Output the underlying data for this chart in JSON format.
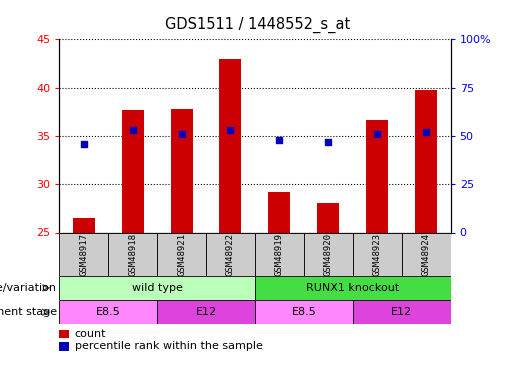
{
  "title": "GDS1511 / 1448552_s_at",
  "samples": [
    "GSM48917",
    "GSM48918",
    "GSM48921",
    "GSM48922",
    "GSM48919",
    "GSM48920",
    "GSM48923",
    "GSM48924"
  ],
  "counts": [
    26.5,
    37.7,
    37.8,
    43.0,
    29.2,
    28.1,
    36.7,
    39.8
  ],
  "percentiles_pct": [
    46,
    53,
    51,
    53,
    48,
    47,
    51,
    52
  ],
  "ylim_left": [
    25,
    45
  ],
  "ylim_right": [
    0,
    100
  ],
  "yticks_left": [
    25,
    30,
    35,
    40,
    45
  ],
  "yticks_right": [
    0,
    25,
    50,
    75,
    100
  ],
  "ytick_labels_right": [
    "0",
    "25",
    "50",
    "75",
    "100%"
  ],
  "bar_color": "#cc0000",
  "dot_color": "#0000bb",
  "bg_color": "#ffffff",
  "groups": [
    {
      "label": "wild type",
      "start": 0,
      "end": 4,
      "color": "#bbffbb"
    },
    {
      "label": "RUNX1 knockout",
      "start": 4,
      "end": 8,
      "color": "#44dd44"
    }
  ],
  "stages": [
    {
      "label": "E8.5",
      "start": 0,
      "end": 2,
      "color": "#ff88ff"
    },
    {
      "label": "E12",
      "start": 2,
      "end": 4,
      "color": "#dd44dd"
    },
    {
      "label": "E8.5",
      "start": 4,
      "end": 6,
      "color": "#ff88ff"
    },
    {
      "label": "E12",
      "start": 6,
      "end": 8,
      "color": "#dd44dd"
    }
  ],
  "row_labels": [
    "genotype/variation",
    "development stage"
  ],
  "legend_count_label": "count",
  "legend_percentile_label": "percentile rank within the sample",
  "sample_box_color": "#cccccc",
  "sample_font_size": 6.5,
  "label_font_size": 8,
  "row_label_font_size": 8
}
